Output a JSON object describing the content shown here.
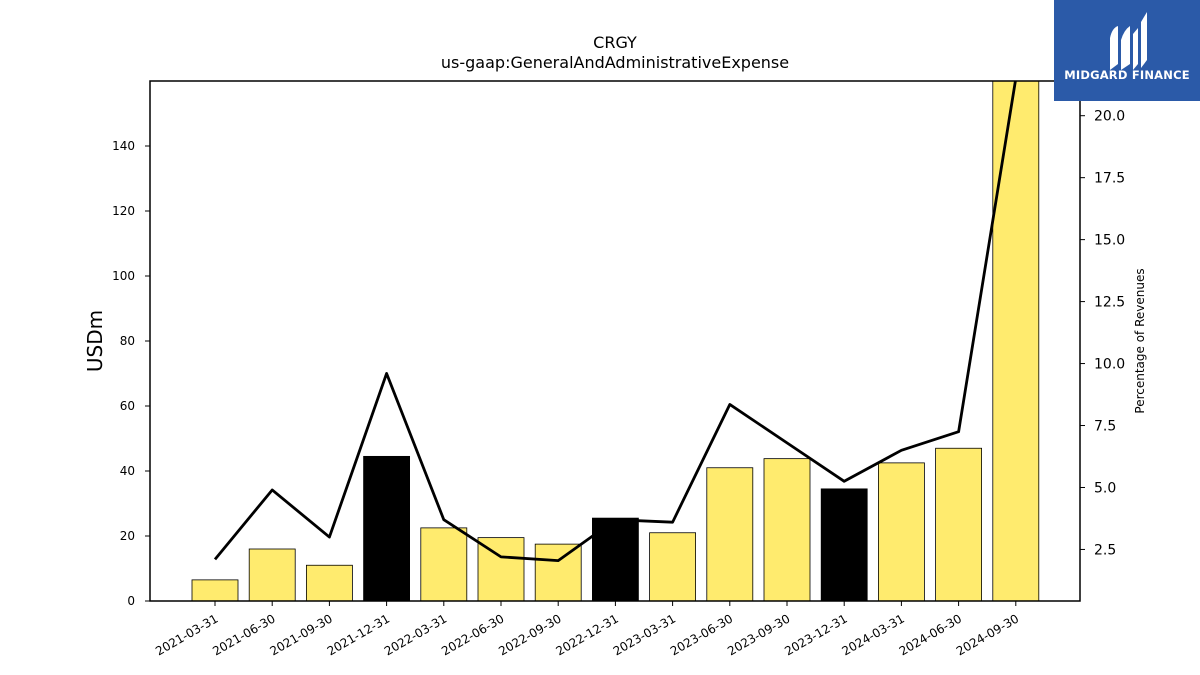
{
  "logo": {
    "text": "MIDGARD FINANCE",
    "color": "#2b5aa8"
  },
  "chart_data": {
    "type": "bar",
    "title": "CRGY",
    "subtitle": "us-gaap:GeneralAndAdministrativeExpense",
    "ylabel": "USDm",
    "y2label": "Percentage of Revenues",
    "categories": [
      "2021-03-31",
      "2021-06-30",
      "2021-09-30",
      "2021-12-31",
      "2022-03-31",
      "2022-06-30",
      "2022-09-30",
      "2022-12-31",
      "2023-03-31",
      "2023-06-30",
      "2023-09-30",
      "2023-12-31",
      "2024-03-31",
      "2024-06-30",
      "2024-09-30"
    ],
    "series": [
      {
        "type": "bar",
        "axis": "left",
        "values": [
          6.5,
          16,
          11,
          44.5,
          22.5,
          19.5,
          17.5,
          25.5,
          21,
          41,
          43.8,
          34.5,
          42.5,
          47,
          160
        ],
        "colors": [
          "#ffeb6e",
          "#ffeb6e",
          "#ffeb6e",
          "#000000",
          "#ffeb6e",
          "#ffeb6e",
          "#ffeb6e",
          "#000000",
          "#ffeb6e",
          "#ffeb6e",
          "#ffeb6e",
          "#000000",
          "#ffeb6e",
          "#ffeb6e",
          "#ffeb6e"
        ]
      },
      {
        "type": "line",
        "axis": "right",
        "values": [
          2.1,
          4.9,
          3.0,
          9.6,
          3.7,
          2.2,
          2.05,
          3.7,
          3.6,
          8.35,
          6.8,
          5.25,
          6.5,
          7.25,
          21.5
        ],
        "color": "#000000"
      }
    ],
    "ylim": [
      0,
      160
    ],
    "y2lim": [
      0.42,
      21.4
    ],
    "yticks": [
      0,
      20,
      40,
      60,
      80,
      100,
      120,
      140
    ],
    "y2ticks": [
      "2.5",
      "5.0",
      "7.5",
      "10.0",
      "12.5",
      "15.0",
      "17.5",
      "20.0"
    ],
    "grid": false,
    "legend": "none"
  }
}
